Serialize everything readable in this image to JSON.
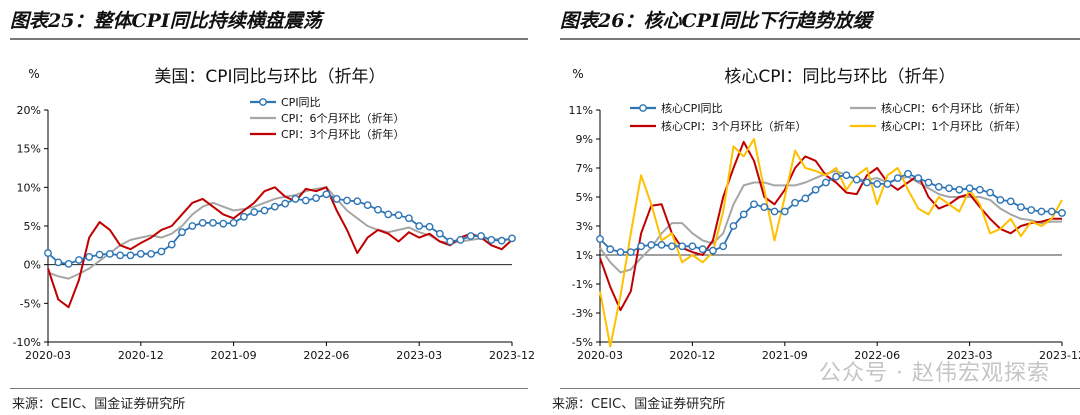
{
  "watermark": "公众号 · 赵伟宏观探索",
  "panels": [
    {
      "heading": "图表25：整体CPI同比持续横盘震荡",
      "source": "来源：CEIC、国金证券研究所"
    },
    {
      "heading": "图表26：核心CPI同比下行趋势放缓",
      "source": "来源：CEIC、国金证券研究所"
    }
  ],
  "colors": {
    "blue": "#2e75b6",
    "gray": "#a6a6a6",
    "red": "#c00000",
    "yellow": "#ffc000",
    "axis": "#000000"
  },
  "chart_data": [
    {
      "type": "line",
      "title": "美国：CPI同比与环比（折年）",
      "ylabel": "%",
      "ylim": [
        -10,
        20
      ],
      "yticks": [
        -10,
        -5,
        0,
        5,
        10,
        15,
        20
      ],
      "ytick_labels": [
        "-10%",
        "-5%",
        "0%",
        "5%",
        "10%",
        "15%",
        "20%"
      ],
      "x_start": "2020-03",
      "x_end": "2023-12",
      "xtick_labels": [
        "2020-03",
        "2020-12",
        "2021-09",
        "2022-06",
        "2023-03",
        "2023-12"
      ],
      "legend": "top-center",
      "series": [
        {
          "name": "CPI同比",
          "color": "blue",
          "marker": true,
          "values": [
            1.5,
            0.3,
            0.1,
            0.6,
            1.0,
            1.3,
            1.4,
            1.2,
            1.2,
            1.4,
            1.4,
            1.7,
            2.6,
            4.2,
            5.0,
            5.4,
            5.4,
            5.3,
            5.4,
            6.2,
            6.8,
            7.0,
            7.5,
            7.9,
            8.5,
            8.3,
            8.6,
            9.1,
            8.5,
            8.3,
            8.2,
            7.7,
            7.1,
            6.5,
            6.4,
            6.0,
            5.0,
            4.9,
            4.0,
            3.0,
            3.2,
            3.7,
            3.7,
            3.2,
            3.1,
            3.4
          ]
        },
        {
          "name": "CPI：6个月环比（折年）",
          "color": "gray",
          "marker": false,
          "values": [
            -1.0,
            -1.5,
            -1.8,
            -1.2,
            -0.5,
            0.5,
            1.5,
            2.5,
            3.2,
            3.5,
            3.8,
            3.5,
            4.0,
            5.0,
            6.5,
            7.5,
            8.0,
            7.5,
            7.0,
            7.2,
            7.5,
            8.0,
            8.5,
            8.8,
            9.0,
            9.5,
            9.8,
            10.0,
            8.5,
            7.0,
            6.0,
            5.0,
            4.5,
            4.2,
            4.5,
            4.8,
            4.2,
            3.8,
            3.0,
            2.8,
            3.0,
            3.2,
            3.4,
            3.3,
            3.3,
            3.2
          ]
        },
        {
          "name": "CPI：3个月环比（折年）",
          "color": "red",
          "marker": false,
          "values": [
            -0.5,
            -4.5,
            -5.5,
            -2.0,
            3.5,
            5.5,
            4.5,
            2.5,
            2.0,
            2.8,
            3.5,
            4.5,
            5.0,
            6.5,
            8.0,
            8.5,
            7.5,
            6.5,
            6.0,
            7.0,
            8.0,
            9.5,
            10.0,
            8.8,
            8.2,
            9.8,
            9.5,
            10.0,
            7.0,
            4.5,
            1.5,
            3.5,
            4.5,
            4.0,
            3.0,
            4.2,
            3.5,
            4.0,
            3.0,
            2.5,
            3.5,
            4.0,
            3.5,
            2.5,
            2.0,
            3.2
          ]
        }
      ]
    },
    {
      "type": "line",
      "title": "核心CPI：同比与环比（折年）",
      "ylabel": "%",
      "ylim": [
        -5,
        11
      ],
      "yticks": [
        -5,
        -3,
        -1,
        1,
        3,
        5,
        7,
        9,
        11
      ],
      "ytick_labels": [
        "-5%",
        "-3%",
        "-1%",
        "1%",
        "3%",
        "5%",
        "7%",
        "9%",
        "11%"
      ],
      "x_start": "2020-03",
      "x_end": "2023-12",
      "xtick_labels": [
        "2020-03",
        "2020-12",
        "2021-09",
        "2022-06",
        "2023-03",
        "2023-12"
      ],
      "legend": "top",
      "series": [
        {
          "name": "核心CPI同比",
          "color": "blue",
          "marker": true,
          "values": [
            2.1,
            1.4,
            1.2,
            1.2,
            1.6,
            1.7,
            1.7,
            1.6,
            1.6,
            1.6,
            1.4,
            1.3,
            1.6,
            3.0,
            3.8,
            4.5,
            4.3,
            4.0,
            4.0,
            4.6,
            4.9,
            5.5,
            6.0,
            6.4,
            6.5,
            6.2,
            6.0,
            5.9,
            5.9,
            6.3,
            6.6,
            6.3,
            6.0,
            5.7,
            5.6,
            5.5,
            5.6,
            5.5,
            5.3,
            4.8,
            4.7,
            4.3,
            4.1,
            4.0,
            4.0,
            3.9
          ]
        },
        {
          "name": "核心CPI：6个月环比（折年）",
          "color": "gray",
          "marker": false,
          "values": [
            1.5,
            0.5,
            -0.2,
            0.0,
            0.8,
            1.5,
            2.5,
            3.2,
            3.2,
            2.5,
            2.0,
            1.8,
            2.5,
            4.5,
            5.8,
            6.0,
            6.0,
            5.8,
            5.8,
            5.8,
            6.0,
            6.3,
            6.6,
            6.8,
            6.5,
            6.2,
            6.2,
            6.3,
            6.0,
            6.2,
            6.4,
            6.0,
            5.6,
            5.2,
            5.0,
            5.0,
            5.0,
            5.0,
            4.8,
            4.2,
            3.8,
            3.5,
            3.4,
            3.2,
            3.3,
            3.3
          ]
        },
        {
          "name": "核心CPI：3个月环比（折年）",
          "color": "red",
          "marker": false,
          "values": [
            0.8,
            -1.2,
            -2.8,
            -1.5,
            2.5,
            4.4,
            4.5,
            2.5,
            1.5,
            1.2,
            1.0,
            2.0,
            5.0,
            7.0,
            8.8,
            7.5,
            5.0,
            4.5,
            5.5,
            7.0,
            7.8,
            7.5,
            6.5,
            6.0,
            5.3,
            5.2,
            6.5,
            7.0,
            6.0,
            5.5,
            6.0,
            6.5,
            5.0,
            4.2,
            4.5,
            5.0,
            5.2,
            4.3,
            3.5,
            2.8,
            2.5,
            3.0,
            3.2,
            3.3,
            3.5,
            3.5
          ]
        },
        {
          "name": "核心CPI：1个月环比（折年）",
          "color": "yellow",
          "marker": false,
          "values": [
            -1.5,
            -5.3,
            -1.8,
            2.5,
            6.5,
            4.5,
            2.0,
            2.5,
            0.5,
            1.0,
            0.5,
            1.2,
            4.0,
            8.5,
            7.8,
            9.0,
            5.5,
            2.0,
            5.0,
            8.2,
            7.0,
            6.8,
            6.5,
            7.0,
            5.5,
            6.5,
            7.0,
            4.5,
            6.5,
            7.0,
            5.5,
            4.2,
            3.8,
            5.0,
            4.5,
            4.0,
            5.5,
            4.5,
            2.5,
            2.8,
            3.5,
            2.3,
            3.3,
            3.0,
            3.5,
            4.8
          ]
        }
      ]
    }
  ]
}
